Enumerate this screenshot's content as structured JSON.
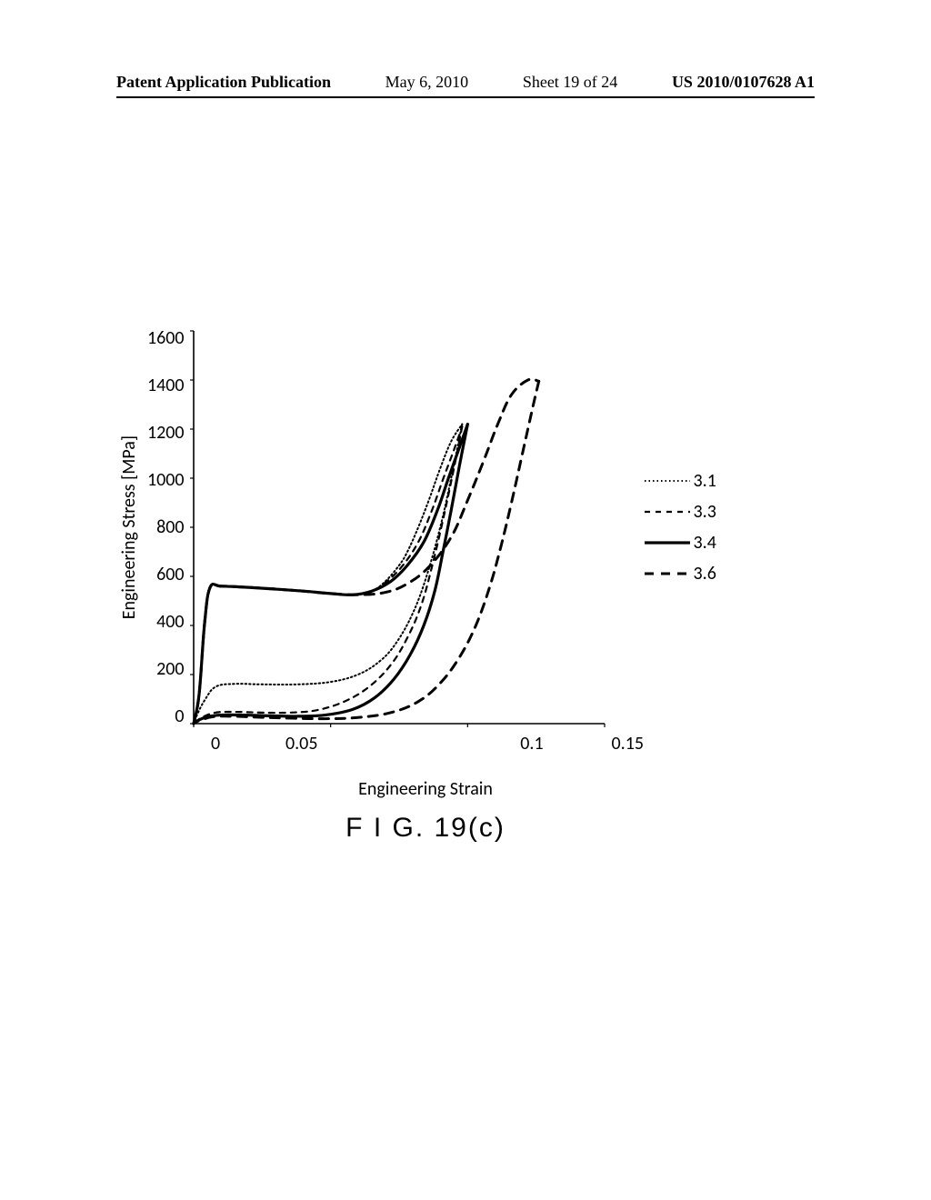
{
  "header": {
    "publication": "Patent Application Publication",
    "date": "May 6, 2010",
    "sheet": "Sheet 19 of 24",
    "patnum": "US 2010/0107628 A1"
  },
  "chart": {
    "type": "line",
    "ylabel": "Engineering Stress [MPa]",
    "xlabel": "Engineering Strain",
    "ylim": [
      0,
      1600
    ],
    "ytick_step": 200,
    "yticks": [
      "1600",
      "1400",
      "1200",
      "1000",
      "800",
      "600",
      "400",
      "200",
      "0"
    ],
    "xlim": [
      0,
      0.15
    ],
    "xtick_step": 0.05,
    "xticks": [
      "0",
      "0.05",
      "0.1",
      "0.15"
    ],
    "background_color": "#ffffff",
    "axis_color": "#000000",
    "tick_length": 6,
    "label_fontsize": 20,
    "series": [
      {
        "name": "3.1",
        "dash": "1.5,3",
        "width": 2,
        "color": "#000000",
        "points_load": [
          [
            0,
            0
          ],
          [
            0.002,
            120
          ],
          [
            0.004,
            410
          ],
          [
            0.006,
            555
          ],
          [
            0.01,
            560
          ],
          [
            0.02,
            555
          ],
          [
            0.03,
            548
          ],
          [
            0.04,
            540
          ],
          [
            0.05,
            530
          ],
          [
            0.058,
            525
          ],
          [
            0.065,
            540
          ],
          [
            0.07,
            580
          ],
          [
            0.075,
            645
          ],
          [
            0.078,
            700
          ],
          [
            0.082,
            800
          ],
          [
            0.086,
            915
          ],
          [
            0.09,
            1040
          ],
          [
            0.094,
            1150
          ],
          [
            0.098,
            1220
          ]
        ],
        "points_unload": [
          [
            0.098,
            1220
          ],
          [
            0.094,
            1000
          ],
          [
            0.09,
            800
          ],
          [
            0.085,
            600
          ],
          [
            0.08,
            450
          ],
          [
            0.074,
            330
          ],
          [
            0.068,
            255
          ],
          [
            0.06,
            200
          ],
          [
            0.05,
            170
          ],
          [
            0.038,
            160
          ],
          [
            0.025,
            160
          ],
          [
            0.015,
            162
          ],
          [
            0.008,
            150
          ],
          [
            0.004,
            95
          ],
          [
            0.001,
            30
          ],
          [
            0,
            0
          ]
        ]
      },
      {
        "name": "3.3",
        "dash": "6,6",
        "width": 2.2,
        "color": "#000000",
        "points_load": [
          [
            0,
            0
          ],
          [
            0.002,
            120
          ],
          [
            0.004,
            410
          ],
          [
            0.006,
            555
          ],
          [
            0.01,
            560
          ],
          [
            0.02,
            555
          ],
          [
            0.03,
            548
          ],
          [
            0.04,
            540
          ],
          [
            0.05,
            530
          ],
          [
            0.058,
            525
          ],
          [
            0.065,
            540
          ],
          [
            0.07,
            575
          ],
          [
            0.076,
            640
          ],
          [
            0.082,
            740
          ],
          [
            0.087,
            870
          ],
          [
            0.091,
            995
          ],
          [
            0.095,
            1115
          ],
          [
            0.098,
            1210
          ]
        ],
        "points_unload": [
          [
            0.098,
            1210
          ],
          [
            0.095,
            1040
          ],
          [
            0.091,
            830
          ],
          [
            0.087,
            640
          ],
          [
            0.083,
            480
          ],
          [
            0.078,
            350
          ],
          [
            0.072,
            240
          ],
          [
            0.064,
            150
          ],
          [
            0.055,
            90
          ],
          [
            0.045,
            55
          ],
          [
            0.035,
            45
          ],
          [
            0.025,
            45
          ],
          [
            0.015,
            48
          ],
          [
            0.008,
            45
          ],
          [
            0.003,
            25
          ],
          [
            0,
            0
          ]
        ]
      },
      {
        "name": "3.4",
        "dash": "",
        "width": 3.2,
        "color": "#000000",
        "points_load": [
          [
            0,
            0
          ],
          [
            0.002,
            120
          ],
          [
            0.004,
            410
          ],
          [
            0.006,
            555
          ],
          [
            0.01,
            560
          ],
          [
            0.02,
            555
          ],
          [
            0.03,
            548
          ],
          [
            0.04,
            540
          ],
          [
            0.05,
            530
          ],
          [
            0.058,
            525
          ],
          [
            0.065,
            540
          ],
          [
            0.072,
            580
          ],
          [
            0.078,
            645
          ],
          [
            0.084,
            740
          ],
          [
            0.089,
            870
          ],
          [
            0.093,
            1000
          ],
          [
            0.097,
            1125
          ],
          [
            0.1,
            1220
          ]
        ],
        "points_unload": [
          [
            0.1,
            1220
          ],
          [
            0.097,
            1050
          ],
          [
            0.094,
            870
          ],
          [
            0.091,
            700
          ],
          [
            0.088,
            540
          ],
          [
            0.084,
            400
          ],
          [
            0.079,
            280
          ],
          [
            0.073,
            180
          ],
          [
            0.066,
            105
          ],
          [
            0.058,
            58
          ],
          [
            0.048,
            35
          ],
          [
            0.038,
            30
          ],
          [
            0.028,
            32
          ],
          [
            0.018,
            35
          ],
          [
            0.01,
            35
          ],
          [
            0.005,
            28
          ],
          [
            0.001,
            10
          ],
          [
            0,
            0
          ]
        ]
      },
      {
        "name": "3.6",
        "dash": "10,8",
        "width": 3,
        "color": "#000000",
        "points_load": [
          [
            0,
            0
          ],
          [
            0.002,
            120
          ],
          [
            0.004,
            410
          ],
          [
            0.006,
            555
          ],
          [
            0.01,
            560
          ],
          [
            0.02,
            555
          ],
          [
            0.03,
            548
          ],
          [
            0.04,
            540
          ],
          [
            0.05,
            530
          ],
          [
            0.06,
            525
          ],
          [
            0.07,
            535
          ],
          [
            0.078,
            570
          ],
          [
            0.086,
            640
          ],
          [
            0.094,
            760
          ],
          [
            0.1,
            910
          ],
          [
            0.106,
            1075
          ],
          [
            0.111,
            1220
          ],
          [
            0.116,
            1340
          ],
          [
            0.122,
            1400
          ],
          [
            0.126,
            1395
          ]
        ],
        "points_unload": [
          [
            0.126,
            1395
          ],
          [
            0.124,
            1300
          ],
          [
            0.12,
            1100
          ],
          [
            0.116,
            900
          ],
          [
            0.112,
            715
          ],
          [
            0.108,
            555
          ],
          [
            0.103,
            400
          ],
          [
            0.097,
            270
          ],
          [
            0.09,
            165
          ],
          [
            0.082,
            90
          ],
          [
            0.072,
            45
          ],
          [
            0.06,
            25
          ],
          [
            0.048,
            20
          ],
          [
            0.036,
            22
          ],
          [
            0.024,
            26
          ],
          [
            0.014,
            30
          ],
          [
            0.007,
            28
          ],
          [
            0.002,
            12
          ],
          [
            0,
            0
          ]
        ]
      }
    ]
  },
  "caption": "F I G. 19(c)"
}
